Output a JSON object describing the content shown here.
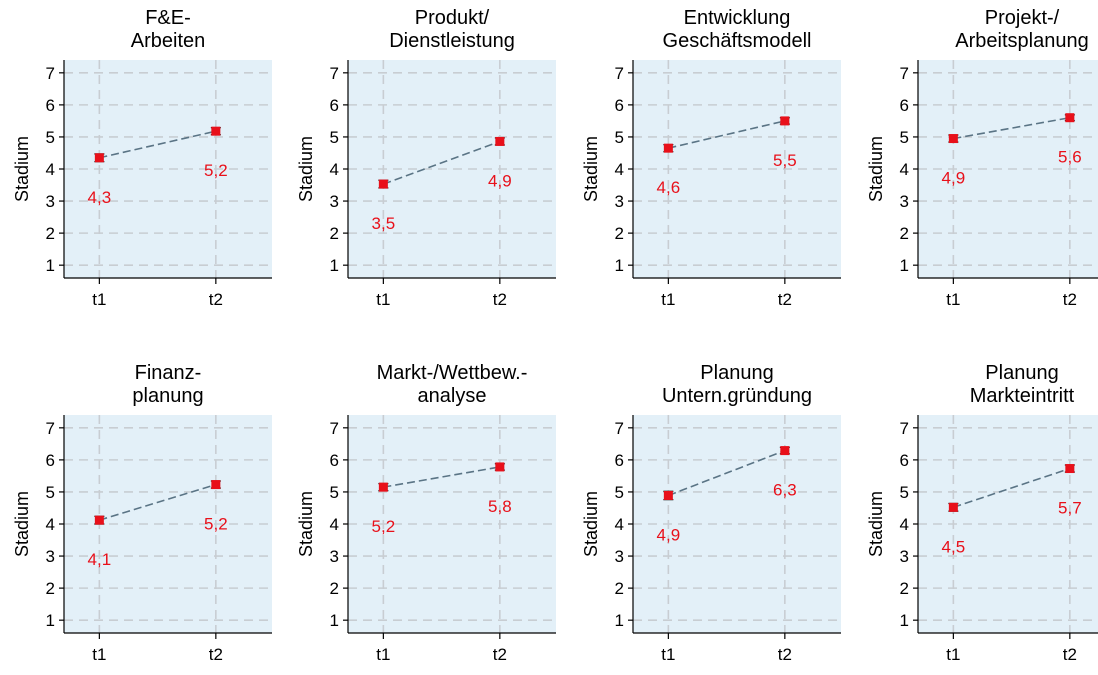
{
  "colors": {
    "background": "#ffffff",
    "plot_bg": "#e3f0f8",
    "grid": "#c8cdd2",
    "axis": "#000000",
    "line": "#5a7485",
    "marker": "#e8101a",
    "errorbar": "#222222",
    "label": "#e8101a"
  },
  "chart_data": [
    {
      "type": "line",
      "title": [
        "F&E-",
        "Arbeiten"
      ],
      "ylabel": "Stadium",
      "categories": [
        "t1",
        "t2"
      ],
      "values": [
        4.35,
        5.18
      ],
      "data_labels": [
        "4,3",
        "5,2"
      ],
      "error": [
        0.12,
        0.11
      ],
      "ylim": [
        0.6,
        7.4
      ],
      "yticks": [
        "1",
        "2",
        "3",
        "4",
        "5",
        "6",
        "7"
      ],
      "grid": true
    },
    {
      "type": "line",
      "title": [
        "Produkt/",
        "Dienstleistung"
      ],
      "ylabel": "Stadium",
      "categories": [
        "t1",
        "t2"
      ],
      "values": [
        3.53,
        4.86
      ],
      "data_labels": [
        "3,5",
        "4,9"
      ],
      "error": [
        0.12,
        0.11
      ],
      "ylim": [
        0.6,
        7.4
      ],
      "yticks": [
        "1",
        "2",
        "3",
        "4",
        "5",
        "6",
        "7"
      ],
      "grid": true
    },
    {
      "type": "line",
      "title": [
        "Entwicklung",
        "Geschäftsmodell"
      ],
      "ylabel": "Stadium",
      "categories": [
        "t1",
        "t2"
      ],
      "values": [
        4.65,
        5.5
      ],
      "data_labels": [
        "4,6",
        "5,5"
      ],
      "error": [
        0.11,
        0.1
      ],
      "ylim": [
        0.6,
        7.4
      ],
      "yticks": [
        "1",
        "2",
        "3",
        "4",
        "5",
        "6",
        "7"
      ],
      "grid": true
    },
    {
      "type": "line",
      "title": [
        "Projekt-/",
        "Arbeitsplanung"
      ],
      "ylabel": "Stadium",
      "categories": [
        "t1",
        "t2"
      ],
      "values": [
        4.95,
        5.6
      ],
      "data_labels": [
        "4,9",
        "5,6"
      ],
      "error": [
        0.11,
        0.09
      ],
      "ylim": [
        0.6,
        7.4
      ],
      "yticks": [
        "1",
        "2",
        "3",
        "4",
        "5",
        "6",
        "7"
      ],
      "grid": true
    },
    {
      "type": "line",
      "title": [
        "Finanz-",
        "planung"
      ],
      "ylabel": "Stadium",
      "categories": [
        "t1",
        "t2"
      ],
      "values": [
        4.12,
        5.23
      ],
      "data_labels": [
        "4,1",
        "5,2"
      ],
      "error": [
        0.12,
        0.11
      ],
      "ylim": [
        0.6,
        7.4
      ],
      "yticks": [
        "1",
        "2",
        "3",
        "4",
        "5",
        "6",
        "7"
      ],
      "grid": true
    },
    {
      "type": "line",
      "title": [
        "Markt-/Wettbew.-",
        "analyse"
      ],
      "ylabel": "Stadium",
      "categories": [
        "t1",
        "t2"
      ],
      "values": [
        5.15,
        5.78
      ],
      "data_labels": [
        "5,2",
        "5,8"
      ],
      "error": [
        0.11,
        0.1
      ],
      "ylim": [
        0.6,
        7.4
      ],
      "yticks": [
        "1",
        "2",
        "3",
        "4",
        "5",
        "6",
        "7"
      ],
      "grid": true
    },
    {
      "type": "line",
      "title": [
        "Planung",
        "Untern.gründung"
      ],
      "ylabel": "Stadium",
      "categories": [
        "t1",
        "t2"
      ],
      "values": [
        4.89,
        6.29
      ],
      "data_labels": [
        "4,9",
        "6,3"
      ],
      "error": [
        0.13,
        0.1
      ],
      "ylim": [
        0.6,
        7.4
      ],
      "yticks": [
        "1",
        "2",
        "3",
        "4",
        "5",
        "6",
        "7"
      ],
      "grid": true
    },
    {
      "type": "line",
      "title": [
        "Planung",
        "Markteintritt"
      ],
      "ylabel": "Stadium",
      "categories": [
        "t1",
        "t2"
      ],
      "values": [
        4.52,
        5.73
      ],
      "data_labels": [
        "4,5",
        "5,7"
      ],
      "error": [
        0.12,
        0.11
      ],
      "ylim": [
        0.6,
        7.4
      ],
      "yticks": [
        "1",
        "2",
        "3",
        "4",
        "5",
        "6",
        "7"
      ],
      "grid": true
    }
  ]
}
